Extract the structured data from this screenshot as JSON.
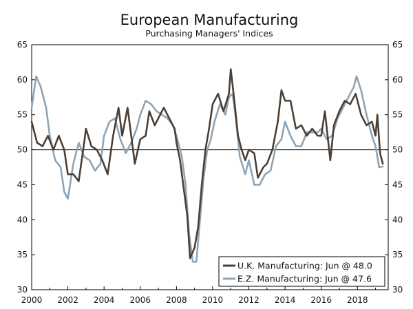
{
  "chart_data": {
    "type": "line",
    "title": "European Manufacturing",
    "subtitle": "Purchasing Managers' Indices",
    "xlabel": "",
    "ylabel": "",
    "xlim": [
      2000,
      2019.7
    ],
    "ylim": [
      30,
      65
    ],
    "x_ticks": [
      "2000",
      "2002",
      "2004",
      "2006",
      "2008",
      "2010",
      "2012",
      "2014",
      "2016",
      "2018"
    ],
    "y_ticks": [
      "30",
      "35",
      "40",
      "45",
      "50",
      "55",
      "60",
      "65"
    ],
    "reference_line": 50,
    "legend_position": "bottom-right",
    "series": [
      {
        "name": "U.K. Manufacturing: Jun @ 48.0",
        "color": "#4a3f35",
        "points": [
          [
            2000.0,
            54.0
          ],
          [
            2000.3,
            51.0
          ],
          [
            2000.6,
            50.5
          ],
          [
            2000.9,
            52.0
          ],
          [
            2001.2,
            50.0
          ],
          [
            2001.5,
            52.0
          ],
          [
            2001.8,
            50.0
          ],
          [
            2002.0,
            46.5
          ],
          [
            2002.3,
            46.5
          ],
          [
            2002.6,
            45.5
          ],
          [
            2002.9,
            51.0
          ],
          [
            2003.0,
            53.0
          ],
          [
            2003.3,
            50.5
          ],
          [
            2003.6,
            50.0
          ],
          [
            2003.9,
            48.5
          ],
          [
            2004.2,
            46.5
          ],
          [
            2004.5,
            52.0
          ],
          [
            2004.8,
            56.0
          ],
          [
            2005.0,
            52.0
          ],
          [
            2005.3,
            56.0
          ],
          [
            2005.5,
            52.0
          ],
          [
            2005.7,
            48.0
          ],
          [
            2006.0,
            51.5
          ],
          [
            2006.3,
            52.0
          ],
          [
            2006.5,
            55.5
          ],
          [
            2006.8,
            53.5
          ],
          [
            2007.0,
            54.5
          ],
          [
            2007.3,
            56.0
          ],
          [
            2007.6,
            54.5
          ],
          [
            2007.9,
            53.0
          ],
          [
            2008.0,
            51.0
          ],
          [
            2008.2,
            48.5
          ],
          [
            2008.4,
            44.5
          ],
          [
            2008.6,
            40.5
          ],
          [
            2008.75,
            34.5
          ],
          [
            2009.0,
            36.0
          ],
          [
            2009.2,
            39.0
          ],
          [
            2009.4,
            45.0
          ],
          [
            2009.6,
            50.0
          ],
          [
            2009.8,
            53.0
          ],
          [
            2010.0,
            56.5
          ],
          [
            2010.3,
            58.0
          ],
          [
            2010.6,
            55.5
          ],
          [
            2010.9,
            58.0
          ],
          [
            2011.0,
            61.5
          ],
          [
            2011.2,
            57.0
          ],
          [
            2011.4,
            52.0
          ],
          [
            2011.6,
            50.0
          ],
          [
            2011.8,
            48.5
          ],
          [
            2012.0,
            50.0
          ],
          [
            2012.3,
            49.5
          ],
          [
            2012.5,
            46.0
          ],
          [
            2012.8,
            47.5
          ],
          [
            2013.0,
            48.0
          ],
          [
            2013.3,
            50.0
          ],
          [
            2013.6,
            54.0
          ],
          [
            2013.8,
            58.5
          ],
          [
            2014.0,
            57.0
          ],
          [
            2014.3,
            57.0
          ],
          [
            2014.6,
            53.0
          ],
          [
            2014.9,
            53.5
          ],
          [
            2015.2,
            52.0
          ],
          [
            2015.5,
            53.0
          ],
          [
            2015.8,
            52.0
          ],
          [
            2016.0,
            52.0
          ],
          [
            2016.2,
            55.5
          ],
          [
            2016.5,
            48.5
          ],
          [
            2016.7,
            53.5
          ],
          [
            2017.0,
            55.5
          ],
          [
            2017.3,
            57.0
          ],
          [
            2017.6,
            56.5
          ],
          [
            2017.9,
            58.0
          ],
          [
            2018.2,
            55.0
          ],
          [
            2018.5,
            53.5
          ],
          [
            2018.8,
            54.0
          ],
          [
            2019.0,
            52.0
          ],
          [
            2019.1,
            55.0
          ],
          [
            2019.25,
            49.5
          ],
          [
            2019.4,
            48.0
          ]
        ]
      },
      {
        "name": "E.Z. Manufacturing: Jun @ 47.6",
        "color": "#8ea4b5",
        "points": [
          [
            2000.0,
            56.0
          ],
          [
            2000.25,
            60.5
          ],
          [
            2000.5,
            59.0
          ],
          [
            2000.8,
            56.0
          ],
          [
            2001.0,
            52.0
          ],
          [
            2001.3,
            48.5
          ],
          [
            2001.6,
            47.5
          ],
          [
            2001.8,
            44.0
          ],
          [
            2002.0,
            43.0
          ],
          [
            2002.3,
            48.0
          ],
          [
            2002.6,
            51.0
          ],
          [
            2002.9,
            49.0
          ],
          [
            2003.2,
            48.5
          ],
          [
            2003.5,
            47.0
          ],
          [
            2003.8,
            48.0
          ],
          [
            2004.0,
            52.0
          ],
          [
            2004.3,
            54.0
          ],
          [
            2004.6,
            54.5
          ],
          [
            2004.9,
            51.5
          ],
          [
            2005.2,
            49.5
          ],
          [
            2005.5,
            51.0
          ],
          [
            2005.8,
            53.0
          ],
          [
            2006.0,
            55.0
          ],
          [
            2006.3,
            57.0
          ],
          [
            2006.6,
            56.5
          ],
          [
            2006.9,
            55.5
          ],
          [
            2007.2,
            55.0
          ],
          [
            2007.5,
            54.5
          ],
          [
            2007.8,
            53.5
          ],
          [
            2008.0,
            52.0
          ],
          [
            2008.3,
            49.0
          ],
          [
            2008.5,
            45.0
          ],
          [
            2008.7,
            38.0
          ],
          [
            2008.9,
            34.0
          ],
          [
            2009.1,
            34.0
          ],
          [
            2009.3,
            40.0
          ],
          [
            2009.5,
            46.0
          ],
          [
            2009.7,
            50.0
          ],
          [
            2009.9,
            51.5
          ],
          [
            2010.1,
            54.0
          ],
          [
            2010.4,
            56.5
          ],
          [
            2010.7,
            55.0
          ],
          [
            2010.9,
            57.5
          ],
          [
            2011.1,
            58.0
          ],
          [
            2011.3,
            54.0
          ],
          [
            2011.5,
            49.0
          ],
          [
            2011.8,
            46.5
          ],
          [
            2012.0,
            48.5
          ],
          [
            2012.3,
            45.0
          ],
          [
            2012.6,
            45.0
          ],
          [
            2012.9,
            46.5
          ],
          [
            2013.2,
            47.0
          ],
          [
            2013.5,
            50.5
          ],
          [
            2013.8,
            51.5
          ],
          [
            2014.0,
            54.0
          ],
          [
            2014.3,
            52.0
          ],
          [
            2014.6,
            50.5
          ],
          [
            2014.9,
            50.5
          ],
          [
            2015.2,
            52.5
          ],
          [
            2015.5,
            52.5
          ],
          [
            2015.8,
            52.5
          ],
          [
            2016.0,
            53.0
          ],
          [
            2016.3,
            51.5
          ],
          [
            2016.6,
            52.0
          ],
          [
            2016.9,
            54.5
          ],
          [
            2017.2,
            56.0
          ],
          [
            2017.5,
            57.5
          ],
          [
            2017.8,
            59.0
          ],
          [
            2017.95,
            60.5
          ],
          [
            2018.2,
            58.5
          ],
          [
            2018.5,
            55.0
          ],
          [
            2018.8,
            52.0
          ],
          [
            2019.0,
            50.5
          ],
          [
            2019.2,
            47.5
          ],
          [
            2019.4,
            47.6
          ]
        ]
      }
    ]
  }
}
